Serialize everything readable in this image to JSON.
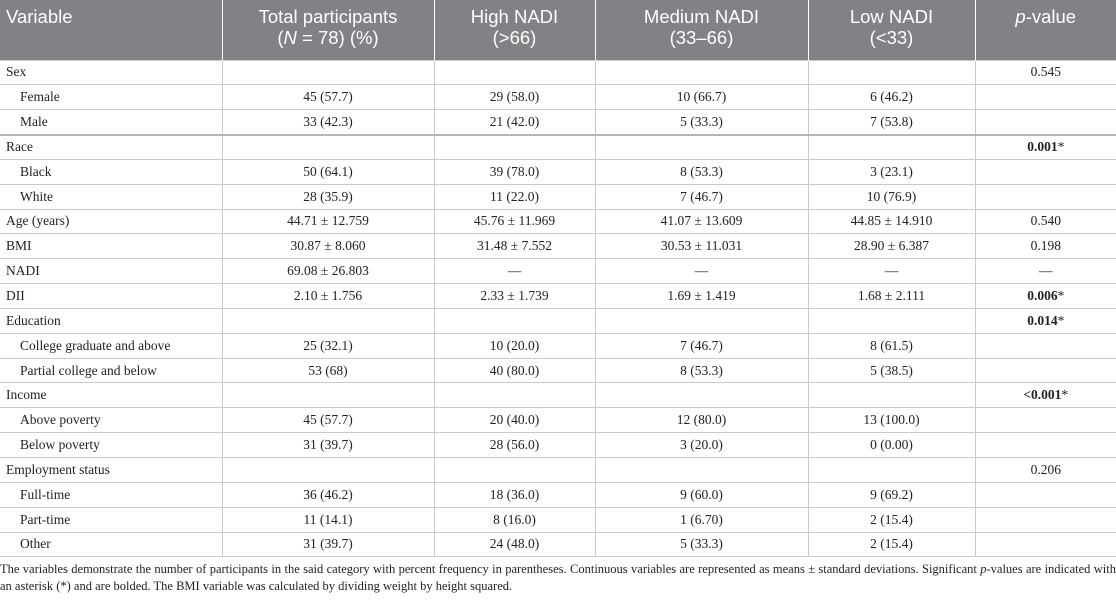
{
  "header": {
    "columns": [
      {
        "line1": "Variable"
      },
      {
        "line1": "Total participants",
        "line2_pre": "(",
        "line2_italic": "N",
        "line2_post": " = 78) (%)"
      },
      {
        "line1": "High NADI",
        "line2": "(>66)"
      },
      {
        "line1": "Medium NADI",
        "line2": "(33–66)"
      },
      {
        "line1": "Low NADI",
        "line2": "(<33)"
      },
      {
        "line1_italic": "p",
        "line1": "-value"
      }
    ]
  },
  "table": {
    "rows": [
      {
        "label": "Sex",
        "p_value": "0.545",
        "items": [
          {
            "label": "Female",
            "cells": [
              "45 (57.7)",
              "29 (58.0)",
              "10 (66.7)",
              "6 (46.2)"
            ]
          },
          {
            "label": "Male",
            "cells": [
              "33 (42.3)",
              "21 (42.0)",
              "5 (33.3)",
              "7 (53.8)"
            ]
          }
        ]
      },
      {
        "label": "Race",
        "p_value": {
          "bold": "0.001",
          "rest": "*"
        },
        "items": [
          {
            "label": "Black",
            "cells": [
              "50 (64.1)",
              "39 (78.0)",
              "8 (53.3)",
              "3 (23.1)"
            ]
          },
          {
            "label": "White",
            "cells": [
              "28 (35.9)",
              "11 (22.0)",
              "7 (46.7)",
              "10 (76.9)"
            ]
          }
        ]
      },
      {
        "label": "Age (years)",
        "cells": [
          "44.71 ± 12.759",
          "45.76 ± 11.969",
          "41.07 ± 13.609",
          "44.85 ± 14.910"
        ],
        "p_value": "0.540"
      },
      {
        "label": "BMI",
        "cells": [
          "30.87 ± 8.060",
          "31.48 ± 7.552",
          "30.53 ± 11.031",
          "28.90 ± 6.387"
        ],
        "p_value": "0.198"
      },
      {
        "label": "NADI",
        "cells": [
          "69.08 ± 26.803",
          "—",
          "—",
          "—"
        ],
        "p_value": "—"
      },
      {
        "label": "DII",
        "cells": [
          "2.10 ± 1.756",
          "2.33 ± 1.739",
          "1.69 ± 1.419",
          "1.68 ± 2.111"
        ],
        "p_value": {
          "bold": "0.006",
          "rest": "*"
        }
      },
      {
        "label": "Education",
        "p_value": {
          "bold": "0.014",
          "rest": "*"
        },
        "items": [
          {
            "label": "College graduate and above",
            "cells": [
              "25 (32.1)",
              "10 (20.0)",
              "7 (46.7)",
              "8 (61.5)"
            ]
          },
          {
            "label": "Partial college and below",
            "cells": [
              "53 (68)",
              "40 (80.0)",
              "8 (53.3)",
              "5 (38.5)"
            ]
          }
        ]
      },
      {
        "label": "Income",
        "p_value": {
          "bold": "<0.001",
          "rest": "*"
        },
        "items": [
          {
            "label": "Above poverty",
            "cells": [
              "45 (57.7)",
              "20 (40.0)",
              "12 (80.0)",
              "13 (100.0)"
            ]
          },
          {
            "label": "Below poverty",
            "cells": [
              "31 (39.7)",
              "28 (56.0)",
              "3 (20.0)",
              "0 (0.00)"
            ]
          }
        ]
      },
      {
        "label": "Employment status",
        "p_value": "0.206",
        "items": [
          {
            "label": "Full-time",
            "cells": [
              "36 (46.2)",
              "18 (36.0)",
              "9 (60.0)",
              "9 (69.2)"
            ]
          },
          {
            "label": "Part-time",
            "cells": [
              "11 (14.1)",
              "8 (16.0)",
              "1 (6.70)",
              "2 (15.4)"
            ]
          },
          {
            "label": "Other",
            "cells": [
              "31 (39.7)",
              "24 (48.0)",
              "5 (33.3)",
              "2 (15.4)"
            ]
          }
        ]
      }
    ]
  },
  "footnote": {
    "before": "The variables demonstrate the number of participants in the said category with percent frequency in parentheses. Continuous variables are represented as means ± standard deviations. Significant ",
    "italic": "p",
    "after": "-values are indicated with an asterisk (*) and are bolded. The BMI variable was calculated by dividing weight by height squared."
  }
}
